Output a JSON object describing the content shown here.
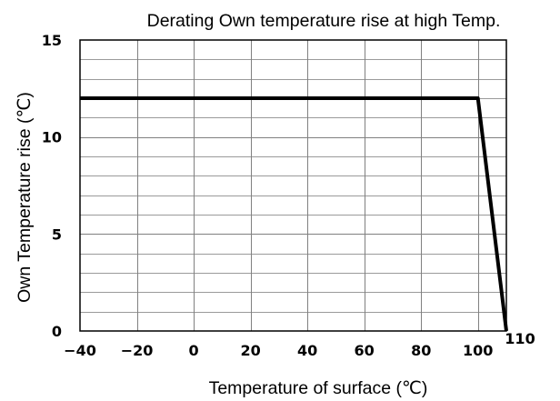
{
  "chart_data": {
    "type": "line",
    "title": "Derating Own temperature rise at high Temp.",
    "xlabel": "Temperature  of surface (℃)",
    "ylabel": "Own Temperature rise (℃)",
    "xlim": [
      -40,
      110
    ],
    "ylim": [
      0,
      15
    ],
    "x_ticks": [
      -40,
      -20,
      0,
      20,
      40,
      60,
      80,
      100,
      110
    ],
    "x_tick_labels": [
      "−40",
      "−20",
      "0",
      "20",
      "40",
      "60",
      "80",
      "100",
      "110"
    ],
    "y_ticks": [
      0,
      5,
      10,
      15
    ],
    "y_tick_labels": [
      "0",
      "5",
      "10",
      "15"
    ],
    "x_grid_step": 20,
    "y_grid_step": 1,
    "grid": true,
    "legend": false,
    "series": [
      {
        "x": [
          -40,
          100,
          110
        ],
        "y": [
          12,
          12,
          0
        ]
      }
    ],
    "colors": {
      "line": "#000000",
      "grid": "#808080",
      "frame": "#000000",
      "background": "#ffffff"
    }
  }
}
